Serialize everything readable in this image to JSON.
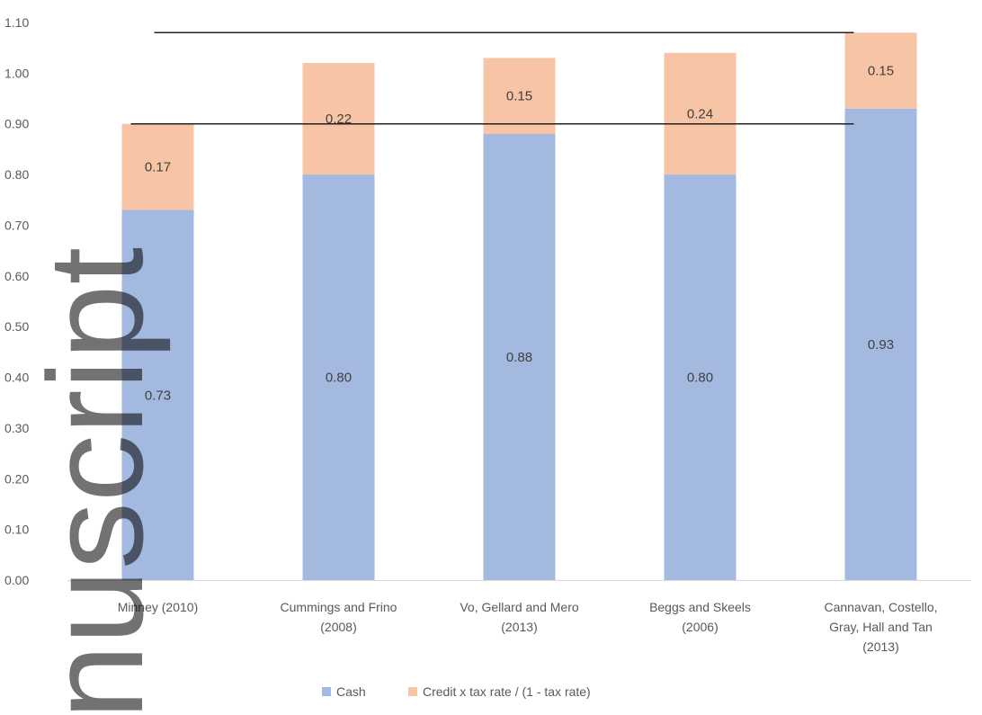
{
  "chart_data": {
    "type": "bar",
    "stacked": true,
    "categories": [
      [
        "Minney (2010)"
      ],
      [
        "Cummings and Frino",
        "(2008)"
      ],
      [
        "Vo, Gellard and Mero",
        "(2013)"
      ],
      [
        "Beggs and Skeels",
        "(2006)"
      ],
      [
        "Cannavan, Costello,",
        "Gray, Hall and Tan",
        "(2013)"
      ]
    ],
    "series": [
      {
        "name": "Cash",
        "color": "#a4b9e0",
        "values": [
          0.73,
          0.8,
          0.88,
          0.8,
          0.93
        ]
      },
      {
        "name": "Credit x tax rate / (1 - tax rate)",
        "color": "#f7c4a5",
        "values": [
          0.17,
          0.22,
          0.15,
          0.24,
          0.15
        ]
      }
    ],
    "data_labels": [
      [
        "0.73",
        "0.80",
        "0.88",
        "0.80",
        "0.93"
      ],
      [
        "0.17",
        "0.22",
        "0.15",
        "0.24",
        "0.15"
      ]
    ],
    "yticks": [
      "0.00",
      "0.10",
      "0.20",
      "0.30",
      "0.40",
      "0.50",
      "0.60",
      "0.70",
      "0.80",
      "0.90",
      "1.00",
      "1.10"
    ],
    "ylim": [
      0,
      1.1
    ],
    "reference_lines": [
      0.9,
      1.08
    ],
    "grid": false,
    "legend_position": "bottom",
    "title": "",
    "xlabel": "",
    "ylabel": ""
  },
  "watermark": {
    "text": "nuscript"
  }
}
